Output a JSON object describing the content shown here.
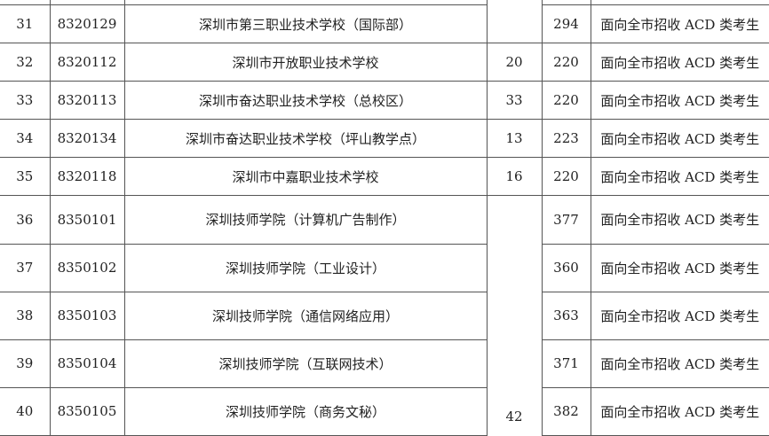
{
  "rows": [
    {
      "no": "31",
      "code": "8320129",
      "school": "深圳市第三职业技术学校（国际部）",
      "count": "",
      "score": "294",
      "note": "面向全市招收 ACD 类考生"
    },
    {
      "no": "32",
      "code": "8320112",
      "school": "深圳市开放职业技术学校",
      "count": "20",
      "score": "220",
      "note": "面向全市招收 ACD 类考生"
    },
    {
      "no": "33",
      "code": "8320113",
      "school": "深圳市奋达职业技术学校（总校区）",
      "count": "33",
      "score": "220",
      "note": "面向全市招收 ACD 类考生"
    },
    {
      "no": "34",
      "code": "8320134",
      "school": "深圳市奋达职业技术学校（坪山教学点）",
      "count": "13",
      "score": "223",
      "note": "面向全市招收 ACD 类考生"
    },
    {
      "no": "35",
      "code": "8320118",
      "school": "深圳市中嘉职业技术学校",
      "count": "16",
      "score": "220",
      "note": "面向全市招收 ACD 类考生"
    },
    {
      "no": "36",
      "code": "8350101",
      "school": "深圳技师学院（计算机广告制作）",
      "count": "",
      "score": "377",
      "note": "面向全市招收 ACD 类考生"
    },
    {
      "no": "37",
      "code": "8350102",
      "school": "深圳技师学院（工业设计）",
      "count": "",
      "score": "360",
      "note": "面向全市招收 ACD 类考生"
    },
    {
      "no": "38",
      "code": "8350103",
      "school": "深圳技师学院（通信网络应用）",
      "count": "",
      "score": "363",
      "note": "面向全市招收 ACD 类考生"
    },
    {
      "no": "39",
      "code": "8350104",
      "school": "深圳技师学院（互联网技术）",
      "count": "",
      "score": "371",
      "note": "面向全市招收 ACD 类考生"
    },
    {
      "no": "40",
      "code": "8350105",
      "school": "深圳技师学院（商务文秘）",
      "count": "42",
      "score": "382",
      "note": "面向全市招收 ACD 类考生"
    }
  ]
}
